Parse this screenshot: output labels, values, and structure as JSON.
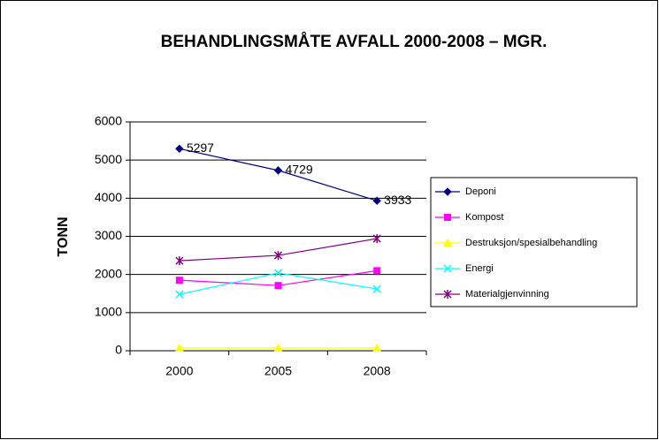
{
  "chart_data": {
    "type": "line",
    "title": "BEHANDLINGSMÅTE AVFALL 2000-2008 – MGR.",
    "y_label": "TONN",
    "categories": [
      "2000",
      "2005",
      "2008"
    ],
    "ylim": [
      0,
      6000
    ],
    "yticks": [
      0,
      1000,
      2000,
      3000,
      4000,
      5000,
      6000
    ],
    "grid": true,
    "legend": "right",
    "series": [
      {
        "name": "Deponi",
        "color": "#000080",
        "marker": "diamond",
        "show_labels": true,
        "values": [
          5297,
          4729,
          3933
        ]
      },
      {
        "name": "Kompost",
        "color": "#ff00ff",
        "marker": "square",
        "values": [
          1850,
          1710,
          2100
        ]
      },
      {
        "name": "Destruksjon/spesialbehandling",
        "color": "#ffff00",
        "marker": "triangle",
        "values": [
          70,
          70,
          70
        ]
      },
      {
        "name": "Energi",
        "color": "#00ffff",
        "marker": "x",
        "values": [
          1480,
          2040,
          1620
        ]
      },
      {
        "name": "Materialgjenvinning",
        "color": "#800080",
        "marker": "star",
        "values": [
          2360,
          2500,
          2940
        ]
      }
    ]
  }
}
